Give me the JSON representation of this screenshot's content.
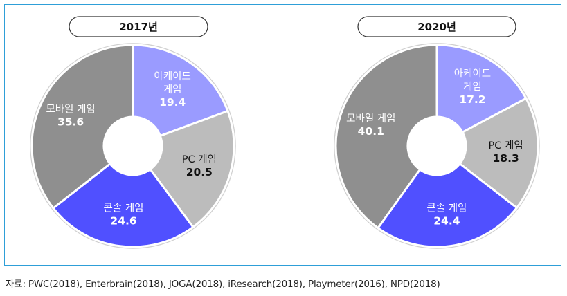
{
  "source": "자료: PWC(2018), Enterbrain(2018), JOGA(2018), iResearch(2018), Playmeter(2016), NPD(2018)",
  "colors": {
    "arcade": "#9a9bff",
    "pc": "#bcbcbc",
    "console": "#5050ff",
    "mobile": "#8f8f8f",
    "ring": "#ffffff",
    "outer_border": "#d0d0d0",
    "frame": "#2e9fd8"
  },
  "chart_data": [
    {
      "type": "pie",
      "title": "2017년",
      "slices": [
        {
          "label": [
            "아케이드",
            "게임"
          ],
          "value": 19.4,
          "value_text": "19.4"
        },
        {
          "label": [
            "PC 게임"
          ],
          "value": 20.5,
          "value_text": "20.5"
        },
        {
          "label": [
            "콘솔 게임"
          ],
          "value": 24.6,
          "value_text": "24.6"
        },
        {
          "label": [
            "모바일 게임"
          ],
          "value": 35.6,
          "value_text": "35.6"
        }
      ]
    },
    {
      "type": "pie",
      "title": "2020년",
      "slices": [
        {
          "label": [
            "아케이드",
            "게임"
          ],
          "value": 17.2,
          "value_text": "17.2"
        },
        {
          "label": [
            "PC 게임"
          ],
          "value": 18.3,
          "value_text": "18.3"
        },
        {
          "label": [
            "콘솔 게임"
          ],
          "value": 24.4,
          "value_text": "24.4"
        },
        {
          "label": [
            "모바일 게임"
          ],
          "value": 40.1,
          "value_text": "40.1"
        }
      ]
    }
  ]
}
